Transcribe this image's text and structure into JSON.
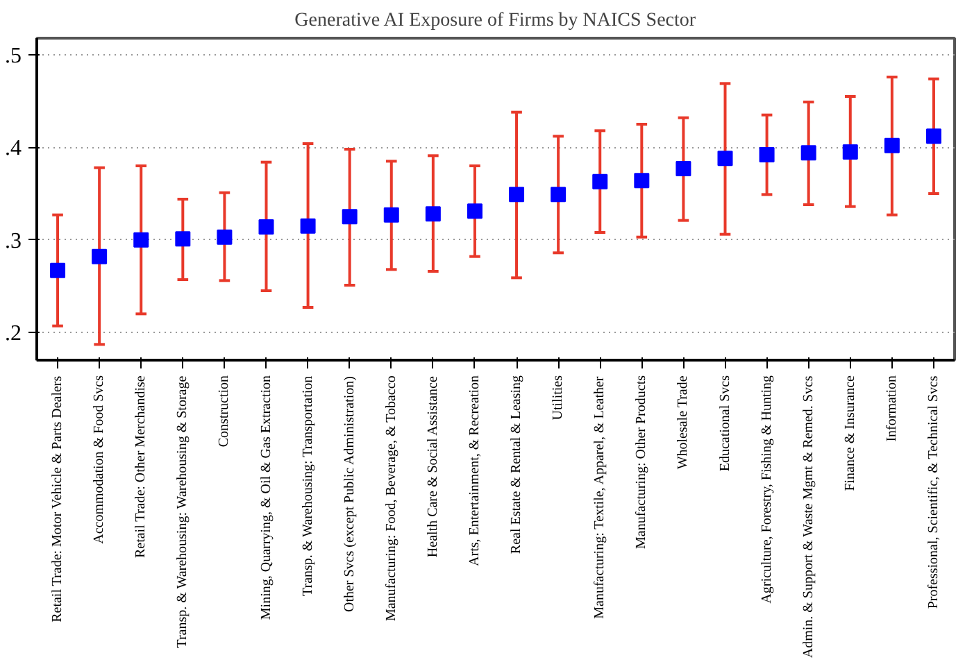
{
  "chart_data": {
    "type": "scatter",
    "title": "Generative AI Exposure of Firms by NAICS Sector",
    "categories": [
      "Retail Trade: Motor Vehicle & Parts Dealers",
      "Accommodation & Food Svcs",
      "Retail Trade: Other Merchandise",
      "Transp. & Warehousing: Warehousing & Storage",
      "Construction",
      "Mining, Quarrying, & Oil & Gas Extraction",
      "Transp. & Warehousing: Transportation",
      "Other Svcs (except Public Administration)",
      "Manufacturing: Food, Beverage, & Tobacco",
      "Health Care & Social Assistance",
      "Arts, Entertainment, & Recreation",
      "Real Estate & Rental & Leasing",
      "Utilities",
      "Manufacturing: Textile, Apparel, & Leather",
      "Manufacturing: Other Products",
      "Wholesale Trade",
      "Educational Svcs",
      "Agriculture, Forestry, Fishing & Hunting",
      "Admin. & Support & Waste Mgmt & Remed. Svcs",
      "Finance & Insurance",
      "Information",
      "Professional, Scientific, & Technical Svcs"
    ],
    "values": [
      0.267,
      0.282,
      0.3,
      0.301,
      0.303,
      0.314,
      0.315,
      0.325,
      0.327,
      0.328,
      0.331,
      0.349,
      0.349,
      0.363,
      0.364,
      0.377,
      0.388,
      0.392,
      0.394,
      0.395,
      0.402,
      0.412
    ],
    "errors": [
      [
        0.207,
        0.327
      ],
      [
        0.187,
        0.378
      ],
      [
        0.22,
        0.38
      ],
      [
        0.257,
        0.344
      ],
      [
        0.256,
        0.351
      ],
      [
        0.245,
        0.384
      ],
      [
        0.227,
        0.404
      ],
      [
        0.251,
        0.398
      ],
      [
        0.268,
        0.385
      ],
      [
        0.266,
        0.391
      ],
      [
        0.282,
        0.38
      ],
      [
        0.259,
        0.438
      ],
      [
        0.286,
        0.412
      ],
      [
        0.308,
        0.418
      ],
      [
        0.303,
        0.425
      ],
      [
        0.321,
        0.432
      ],
      [
        0.306,
        0.469
      ],
      [
        0.349,
        0.435
      ],
      [
        0.338,
        0.449
      ],
      [
        0.336,
        0.455
      ],
      [
        0.327,
        0.476
      ],
      [
        0.35,
        0.474
      ]
    ],
    "color": "#0000ff",
    "marker": "square",
    "ylim": [
      0.17,
      0.518
    ],
    "yticks": [
      {
        "value": 0.2,
        "label": ".2"
      },
      {
        "value": 0.3,
        "label": ".3"
      },
      {
        "value": 0.4,
        "label": ".4"
      },
      {
        "value": 0.5,
        "label": ".5"
      }
    ],
    "grid": "y"
  }
}
